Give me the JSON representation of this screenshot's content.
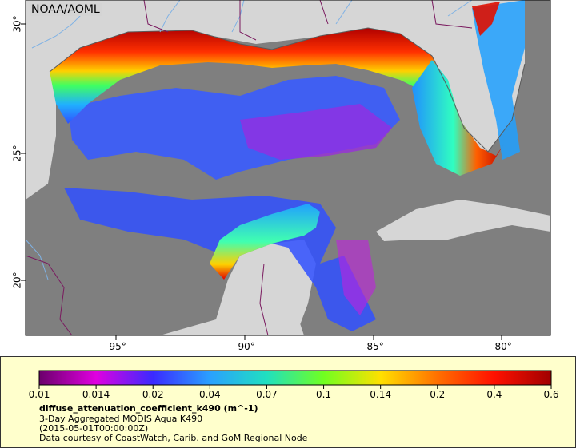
{
  "map": {
    "agency_label": "NOAA/AOML",
    "lat_ticks": [
      "30°",
      "25°",
      "20°"
    ],
    "lon_ticks": [
      "-95°",
      "-90°",
      "-85°",
      "-80°"
    ],
    "colors": {
      "land": "#d6d6d6",
      "no_data": "#7f7f7f",
      "rivers": "#7fb2e5",
      "borders": "#7a1a5f"
    }
  },
  "legend": {
    "tick_labels": [
      "0.01",
      "0.014",
      "0.02",
      "0.04",
      "0.07",
      "0.1",
      "0.14",
      "0.2",
      "0.4",
      "0.6"
    ],
    "colormap": [
      "#6b006b",
      "#e000e0",
      "#3a2aff",
      "#2aa0ff",
      "#20e0c0",
      "#70ff20",
      "#ffe000",
      "#ff7000",
      "#ff1000",
      "#a00000"
    ],
    "variable": "diffuse_attenuation_coefficient_k490 (m^-1)",
    "description": "3-Day Aggregated MODIS Aqua K490",
    "time": "(2015-05-01T00:00:00Z)",
    "credit": "Data courtesy of CoastWatch, Carib. and GoM Regional Node"
  }
}
